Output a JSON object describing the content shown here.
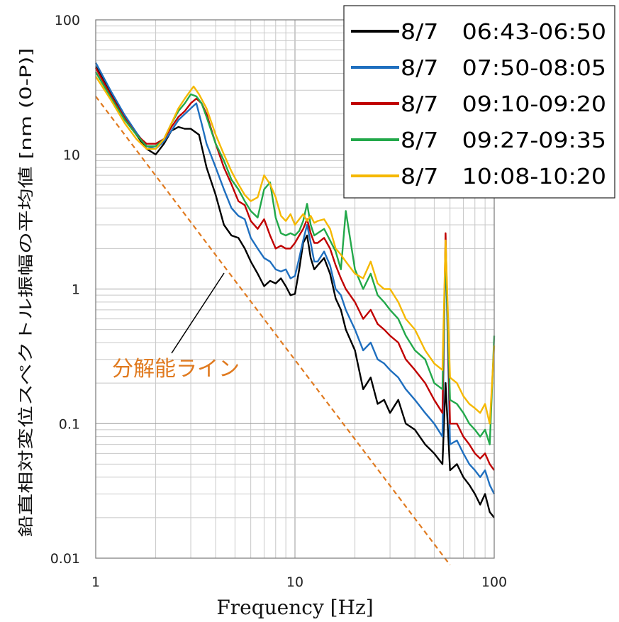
{
  "chart_data": {
    "type": "line",
    "xlabel": "Frequency [Hz]",
    "ylabel": "鉛直相対変位スペクトル振幅の平均値 [nm (0-P)]",
    "x_scale": "log",
    "y_scale": "log",
    "xlim": [
      1,
      100
    ],
    "ylim": [
      0.01,
      100
    ],
    "x_ticks": [
      "1",
      "10",
      "100"
    ],
    "y_ticks": [
      "100",
      "10",
      "1",
      "0.1",
      "0.01"
    ],
    "grid": true,
    "legend_position": "top-right",
    "series": [
      {
        "name": "8/7　06:43-06:50",
        "color": "#000000",
        "points": [
          [
            1,
            45
          ],
          [
            1.2,
            28
          ],
          [
            1.4,
            19
          ],
          [
            1.6,
            14
          ],
          [
            1.8,
            11
          ],
          [
            2,
            10
          ],
          [
            2.2,
            12
          ],
          [
            2.4,
            15
          ],
          [
            2.6,
            16
          ],
          [
            2.8,
            15.5
          ],
          [
            3,
            15.5
          ],
          [
            3.3,
            14
          ],
          [
            3.6,
            8
          ],
          [
            4,
            5
          ],
          [
            4.4,
            3
          ],
          [
            4.8,
            2.5
          ],
          [
            5.2,
            2.4
          ],
          [
            5.6,
            2.0
          ],
          [
            6,
            1.6
          ],
          [
            6.5,
            1.3
          ],
          [
            7,
            1.05
          ],
          [
            7.5,
            1.15
          ],
          [
            8,
            1.1
          ],
          [
            8.5,
            1.2
          ],
          [
            9,
            1.05
          ],
          [
            9.5,
            0.9
          ],
          [
            10,
            0.92
          ],
          [
            10.5,
            1.4
          ],
          [
            11,
            2.2
          ],
          [
            11.5,
            2.5
          ],
          [
            12,
            1.7
          ],
          [
            12.5,
            1.4
          ],
          [
            13,
            1.5
          ],
          [
            14,
            1.7
          ],
          [
            15,
            1.3
          ],
          [
            16,
            0.85
          ],
          [
            17,
            0.7
          ],
          [
            18,
            0.5
          ],
          [
            20,
            0.35
          ],
          [
            22,
            0.18
          ],
          [
            24,
            0.22
          ],
          [
            26,
            0.14
          ],
          [
            28,
            0.15
          ],
          [
            30,
            0.12
          ],
          [
            33,
            0.15
          ],
          [
            36,
            0.1
          ],
          [
            40,
            0.09
          ],
          [
            45,
            0.07
          ],
          [
            50,
            0.06
          ],
          [
            55,
            0.05
          ],
          [
            57,
            0.2
          ],
          [
            60,
            0.045
          ],
          [
            65,
            0.05
          ],
          [
            70,
            0.04
          ],
          [
            75,
            0.035
          ],
          [
            80,
            0.03
          ],
          [
            85,
            0.025
          ],
          [
            90,
            0.03
          ],
          [
            95,
            0.022
          ],
          [
            100,
            0.02
          ]
        ]
      },
      {
        "name": "8/7　07:50-08:05",
        "color": "#1f6fbf",
        "points": [
          [
            1,
            48
          ],
          [
            1.2,
            29
          ],
          [
            1.4,
            19.5
          ],
          [
            1.6,
            14.5
          ],
          [
            1.8,
            11.5
          ],
          [
            2,
            11
          ],
          [
            2.2,
            12.5
          ],
          [
            2.4,
            15
          ],
          [
            2.6,
            18
          ],
          [
            2.8,
            20
          ],
          [
            3,
            22
          ],
          [
            3.2,
            24
          ],
          [
            3.4,
            17
          ],
          [
            3.6,
            12
          ],
          [
            4,
            8
          ],
          [
            4.4,
            5.5
          ],
          [
            4.8,
            4
          ],
          [
            5.2,
            3.5
          ],
          [
            5.6,
            3.3
          ],
          [
            6,
            2.4
          ],
          [
            6.5,
            2.0
          ],
          [
            7,
            1.7
          ],
          [
            7.5,
            1.6
          ],
          [
            8,
            1.4
          ],
          [
            8.5,
            1.35
          ],
          [
            9,
            1.4
          ],
          [
            9.5,
            1.2
          ],
          [
            10,
            1.25
          ],
          [
            10.5,
            1.7
          ],
          [
            11,
            2.3
          ],
          [
            11.5,
            3.0
          ],
          [
            12,
            2.2
          ],
          [
            12.5,
            1.6
          ],
          [
            13,
            1.6
          ],
          [
            14,
            1.9
          ],
          [
            15,
            1.5
          ],
          [
            16,
            1.0
          ],
          [
            17,
            0.9
          ],
          [
            18,
            0.7
          ],
          [
            20,
            0.5
          ],
          [
            22,
            0.35
          ],
          [
            24,
            0.4
          ],
          [
            26,
            0.3
          ],
          [
            28,
            0.28
          ],
          [
            30,
            0.25
          ],
          [
            33,
            0.22
          ],
          [
            36,
            0.18
          ],
          [
            40,
            0.15
          ],
          [
            45,
            0.12
          ],
          [
            50,
            0.1
          ],
          [
            55,
            0.08
          ],
          [
            57,
            2.2
          ],
          [
            60,
            0.07
          ],
          [
            65,
            0.075
          ],
          [
            70,
            0.06
          ],
          [
            75,
            0.05
          ],
          [
            80,
            0.045
          ],
          [
            85,
            0.04
          ],
          [
            90,
            0.045
          ],
          [
            95,
            0.035
          ],
          [
            100,
            0.03
          ]
        ]
      },
      {
        "name": "8/7　09:10-09:20",
        "color": "#c00000",
        "points": [
          [
            1,
            44
          ],
          [
            1.2,
            27
          ],
          [
            1.4,
            18.5
          ],
          [
            1.6,
            14
          ],
          [
            1.8,
            12
          ],
          [
            2,
            12
          ],
          [
            2.2,
            13
          ],
          [
            2.4,
            16
          ],
          [
            2.6,
            19
          ],
          [
            2.8,
            21
          ],
          [
            3,
            24
          ],
          [
            3.2,
            26
          ],
          [
            3.4,
            24
          ],
          [
            3.6,
            20
          ],
          [
            4,
            12
          ],
          [
            4.4,
            8
          ],
          [
            4.8,
            6
          ],
          [
            5.2,
            4.5
          ],
          [
            5.6,
            4.2
          ],
          [
            6,
            3.2
          ],
          [
            6.5,
            2.8
          ],
          [
            7,
            3.3
          ],
          [
            7.5,
            2.5
          ],
          [
            8,
            2.0
          ],
          [
            8.5,
            2.1
          ],
          [
            9,
            2.0
          ],
          [
            9.5,
            2.0
          ],
          [
            10,
            2.2
          ],
          [
            10.5,
            2.5
          ],
          [
            11,
            2.8
          ],
          [
            11.5,
            3.3
          ],
          [
            12,
            2.6
          ],
          [
            12.5,
            2.2
          ],
          [
            13,
            2.2
          ],
          [
            14,
            2.4
          ],
          [
            15,
            2.0
          ],
          [
            16,
            1.5
          ],
          [
            17,
            1.2
          ],
          [
            18,
            1.0
          ],
          [
            20,
            0.8
          ],
          [
            22,
            0.6
          ],
          [
            24,
            0.7
          ],
          [
            26,
            0.55
          ],
          [
            28,
            0.5
          ],
          [
            30,
            0.45
          ],
          [
            33,
            0.4
          ],
          [
            36,
            0.3
          ],
          [
            40,
            0.25
          ],
          [
            45,
            0.2
          ],
          [
            50,
            0.15
          ],
          [
            55,
            0.12
          ],
          [
            57,
            2.6
          ],
          [
            60,
            0.1
          ],
          [
            65,
            0.1
          ],
          [
            70,
            0.08
          ],
          [
            75,
            0.07
          ],
          [
            80,
            0.06
          ],
          [
            85,
            0.055
          ],
          [
            90,
            0.06
          ],
          [
            95,
            0.05
          ],
          [
            100,
            0.045
          ]
        ]
      },
      {
        "name": "8/7　09:27-09:35",
        "color": "#22a84a",
        "points": [
          [
            1,
            41
          ],
          [
            1.2,
            26
          ],
          [
            1.4,
            18
          ],
          [
            1.6,
            14
          ],
          [
            1.8,
            11.5
          ],
          [
            2,
            11.5
          ],
          [
            2.2,
            13
          ],
          [
            2.4,
            17
          ],
          [
            2.6,
            21
          ],
          [
            2.8,
            24
          ],
          [
            3,
            28
          ],
          [
            3.2,
            27
          ],
          [
            3.4,
            24
          ],
          [
            3.6,
            19
          ],
          [
            4,
            12
          ],
          [
            4.4,
            9
          ],
          [
            4.8,
            6.5
          ],
          [
            5.2,
            5.5
          ],
          [
            5.6,
            4.5
          ],
          [
            6,
            3.8
          ],
          [
            6.5,
            3.4
          ],
          [
            7,
            5.5
          ],
          [
            7.5,
            6.2
          ],
          [
            8,
            3.4
          ],
          [
            8.5,
            2.6
          ],
          [
            9,
            2.5
          ],
          [
            9.5,
            2.6
          ],
          [
            10,
            2.5
          ],
          [
            10.5,
            2.7
          ],
          [
            11,
            3.2
          ],
          [
            11.5,
            4.3
          ],
          [
            12,
            3.0
          ],
          [
            12.5,
            2.5
          ],
          [
            13,
            2.6
          ],
          [
            14,
            2.8
          ],
          [
            15,
            2.3
          ],
          [
            16,
            1.9
          ],
          [
            17,
            1.4
          ],
          [
            18,
            3.8
          ],
          [
            20,
            1.4
          ],
          [
            22,
            1.0
          ],
          [
            24,
            1.3
          ],
          [
            26,
            0.9
          ],
          [
            28,
            0.8
          ],
          [
            30,
            0.7
          ],
          [
            33,
            0.6
          ],
          [
            36,
            0.45
          ],
          [
            40,
            0.35
          ],
          [
            45,
            0.3
          ],
          [
            50,
            0.2
          ],
          [
            55,
            0.18
          ],
          [
            57,
            2.0
          ],
          [
            60,
            0.15
          ],
          [
            65,
            0.14
          ],
          [
            70,
            0.12
          ],
          [
            75,
            0.1
          ],
          [
            80,
            0.09
          ],
          [
            85,
            0.08
          ],
          [
            90,
            0.09
          ],
          [
            95,
            0.07
          ],
          [
            100,
            0.45
          ]
        ]
      },
      {
        "name": "8/7　10:08-10:20",
        "color": "#f5b800",
        "points": [
          [
            1,
            38
          ],
          [
            1.2,
            25
          ],
          [
            1.4,
            17
          ],
          [
            1.6,
            13
          ],
          [
            1.8,
            11
          ],
          [
            2,
            11
          ],
          [
            2.2,
            13
          ],
          [
            2.4,
            17
          ],
          [
            2.6,
            22
          ],
          [
            2.8,
            26
          ],
          [
            3,
            30
          ],
          [
            3.1,
            32
          ],
          [
            3.3,
            28
          ],
          [
            3.6,
            22
          ],
          [
            4,
            14
          ],
          [
            4.4,
            10
          ],
          [
            4.8,
            7.5
          ],
          [
            5.2,
            6
          ],
          [
            5.6,
            5
          ],
          [
            6,
            4.5
          ],
          [
            6.5,
            4.8
          ],
          [
            7,
            7.0
          ],
          [
            7.5,
            6.0
          ],
          [
            8,
            4.8
          ],
          [
            8.5,
            3.5
          ],
          [
            9,
            3.2
          ],
          [
            9.5,
            3.6
          ],
          [
            10,
            3.0
          ],
          [
            10.5,
            3.3
          ],
          [
            11,
            3.6
          ],
          [
            11.5,
            3.2
          ],
          [
            12,
            3.5
          ],
          [
            12.5,
            3.1
          ],
          [
            13,
            3.2
          ],
          [
            14,
            3.3
          ],
          [
            15,
            2.8
          ],
          [
            16,
            2.0
          ],
          [
            17,
            1.8
          ],
          [
            18,
            1.6
          ],
          [
            20,
            1.3
          ],
          [
            22,
            1.2
          ],
          [
            24,
            1.6
          ],
          [
            26,
            1.1
          ],
          [
            28,
            1.0
          ],
          [
            30,
            1.0
          ],
          [
            33,
            0.8
          ],
          [
            36,
            0.6
          ],
          [
            40,
            0.5
          ],
          [
            45,
            0.35
          ],
          [
            50,
            0.28
          ],
          [
            55,
            0.25
          ],
          [
            57,
            2.3
          ],
          [
            60,
            0.22
          ],
          [
            65,
            0.2
          ],
          [
            70,
            0.16
          ],
          [
            75,
            0.14
          ],
          [
            80,
            0.13
          ],
          [
            85,
            0.12
          ],
          [
            90,
            0.14
          ],
          [
            95,
            0.1
          ],
          [
            100,
            0.38
          ]
        ]
      }
    ],
    "annotation": {
      "label": "分解能ライン",
      "color": "#e07a1f",
      "line_from": [
        1,
        27
      ],
      "line_to": [
        60,
        0.0089
      ]
    }
  }
}
